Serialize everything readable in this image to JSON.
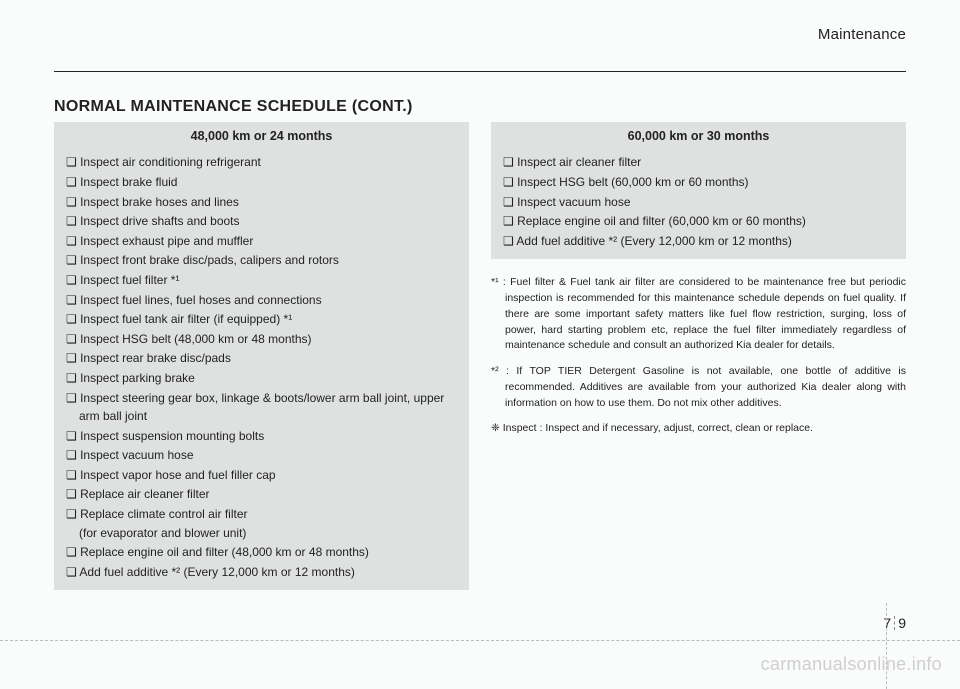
{
  "header": {
    "section": "Maintenance"
  },
  "title": "NORMAL MAINTENANCE SCHEDULE (CONT.)",
  "left": {
    "heading": "48,000 km or 24 months",
    "items": [
      "❑ Inspect air conditioning refrigerant",
      "❑ Inspect brake fluid",
      "❑ Inspect brake hoses and lines",
      "❑ Inspect drive shafts and boots",
      "❑ Inspect exhaust pipe and muffler",
      "❑ Inspect front brake disc/pads, calipers and rotors",
      "❑ Inspect fuel filter *¹",
      "❑ Inspect fuel lines, fuel hoses and connections",
      "❑ Inspect fuel tank air filter (if equipped) *¹",
      "❑ Inspect HSG belt (48,000 km or 48 months)",
      "❑ Inspect rear brake disc/pads",
      "❑ Inspect parking brake",
      "❑ Inspect steering gear box, linkage & boots/lower arm ball joint, upper arm ball joint",
      "❑ Inspect suspension mounting bolts",
      "❑ Inspect vacuum hose",
      "❑ Inspect vapor hose and fuel filler cap",
      "❑ Replace air cleaner filter",
      "❑ Replace climate control air filter",
      "   (for evaporator and blower unit)",
      "❑ Replace engine oil and filter (48,000 km or 48 months)",
      "❑ Add fuel additive *² (Every 12,000 km or 12 months)"
    ]
  },
  "right": {
    "heading": "60,000 km or 30 months",
    "items": [
      "❑ Inspect air cleaner filter",
      "❑ Inspect HSG belt (60,000 km or 60 months)",
      "❑ Inspect vacuum hose",
      "❑ Replace engine oil and filter (60,000 km or 60 months)",
      "❑ Add fuel additive *² (Every 12,000 km or 12 months)"
    ]
  },
  "notes": {
    "n1": "*¹ : Fuel filter & Fuel tank air filter are considered to be maintenance free but periodic inspection is recommended for this maintenance schedule depends on fuel quality. If there are some important safety matters like fuel flow restriction, surging, loss of power, hard starting problem etc, replace the fuel filter immediately regardless of maintenance schedule and consult an authorized Kia dealer for details.",
    "n2": "*² : If TOP TIER Detergent Gasoline is not available, one bottle of additive is recommended. Additives are available from your authorized Kia dealer along with information on how to use them. Do not mix other additives.",
    "n3": "❈ Inspect : Inspect and if necessary, adjust, correct, clean or replace."
  },
  "page": {
    "chapter": "7",
    "num": "9"
  },
  "watermark": "carmanualsonline.info"
}
